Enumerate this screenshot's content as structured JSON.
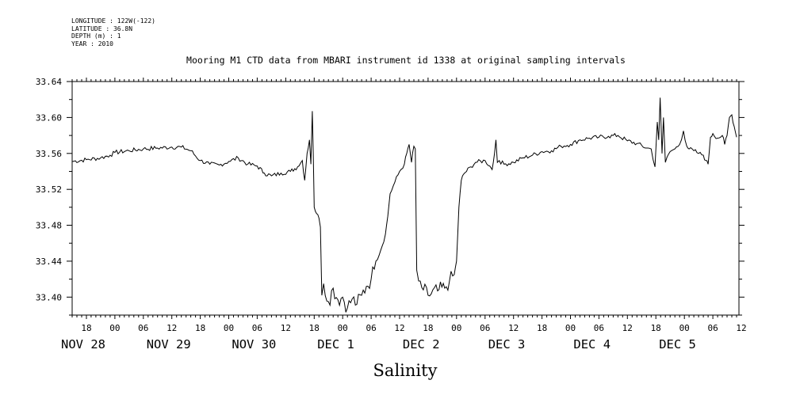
{
  "meta": {
    "longitude": "LONGITUDE : 122W(-122)",
    "latitude": "LATITUDE : 36.8N",
    "depth": "DEPTH (m) : 1",
    "year": "YEAR : 2010"
  },
  "chart_data": {
    "type": "line",
    "title": "Mooring M1 CTD data from MBARI instrument id 1338 at original sampling intervals",
    "xlabel": "Salinity",
    "ylabel": "",
    "xlim": [
      -9,
      131.5
    ],
    "ylim": [
      33.38,
      33.64
    ],
    "y_ticks": [
      "33.40",
      "33.44",
      "33.48",
      "33.52",
      "33.56",
      "33.60",
      "33.64"
    ],
    "x_tick_hours": [
      -6,
      0,
      6,
      12,
      18,
      24,
      30,
      36,
      42,
      48,
      54,
      60,
      66,
      72,
      78,
      84,
      90,
      96,
      102,
      108,
      114,
      120,
      126,
      132
    ],
    "x_tick_labels": [
      "18",
      "00",
      "06",
      "12",
      "18",
      "00",
      "06",
      "12",
      "18",
      "00",
      "06",
      "12",
      "18",
      "00",
      "06",
      "12",
      "18",
      "00",
      "06",
      "12",
      "18",
      "00",
      "06",
      "12"
    ],
    "x_day_labels": [
      {
        "label": "NOV 28",
        "at": -6
      },
      {
        "label": "NOV 29",
        "at": 12
      },
      {
        "label": "NOV 30",
        "at": 30
      },
      {
        "label": "DEC  1",
        "at": 48
      },
      {
        "label": "DEC  2",
        "at": 66
      },
      {
        "label": "DEC  3",
        "at": 84
      },
      {
        "label": "DEC  4",
        "at": 102
      },
      {
        "label": "DEC  5",
        "at": 120
      }
    ],
    "x_units": "hours from 00:00 NOV 29 2010",
    "grid": false,
    "series": [
      {
        "values": [
          [
            -9,
            33.551
          ],
          [
            -6,
            33.553
          ],
          [
            -3,
            33.555
          ],
          [
            -1,
            33.558
          ],
          [
            0,
            33.561
          ],
          [
            3,
            33.563
          ],
          [
            6,
            33.565
          ],
          [
            9,
            33.566
          ],
          [
            12,
            33.567
          ],
          [
            14,
            33.567
          ],
          [
            16,
            33.563
          ],
          [
            18,
            33.552
          ],
          [
            20,
            33.548
          ],
          [
            22,
            33.547
          ],
          [
            24,
            33.551
          ],
          [
            26,
            33.555
          ],
          [
            28,
            33.548
          ],
          [
            30,
            33.546
          ],
          [
            31.5,
            33.538
          ],
          [
            33,
            33.535
          ],
          [
            35,
            33.538
          ],
          [
            37,
            33.54
          ],
          [
            38.5,
            33.545
          ],
          [
            39.5,
            33.552
          ],
          [
            40,
            33.53
          ],
          [
            40.5,
            33.56
          ],
          [
            41,
            33.575
          ],
          [
            41.3,
            33.548
          ],
          [
            41.6,
            33.607
          ],
          [
            41.8,
            33.56
          ],
          [
            42,
            33.5
          ],
          [
            42.5,
            33.493
          ],
          [
            43,
            33.488
          ],
          [
            43.3,
            33.478
          ],
          [
            43.6,
            33.402
          ],
          [
            44,
            33.415
          ],
          [
            45,
            33.395
          ],
          [
            46,
            33.41
          ],
          [
            47,
            33.397
          ],
          [
            48,
            33.4
          ],
          [
            49,
            33.388
          ],
          [
            50,
            33.398
          ],
          [
            51,
            33.392
          ],
          [
            52,
            33.402
          ],
          [
            53,
            33.412
          ],
          [
            54,
            33.42
          ],
          [
            55,
            33.44
          ],
          [
            56,
            33.452
          ],
          [
            57,
            33.47
          ],
          [
            57.5,
            33.49
          ],
          [
            58,
            33.515
          ],
          [
            59,
            33.528
          ],
          [
            60,
            33.54
          ],
          [
            61,
            33.548
          ],
          [
            61.5,
            33.56
          ],
          [
            62,
            33.57
          ],
          [
            62.5,
            33.55
          ],
          [
            63,
            33.568
          ],
          [
            63.3,
            33.565
          ],
          [
            63.6,
            33.43
          ],
          [
            64,
            33.418
          ],
          [
            65,
            33.408
          ],
          [
            66,
            33.402
          ],
          [
            68,
            33.407
          ],
          [
            69.5,
            33.41
          ],
          [
            70.5,
            33.418
          ],
          [
            71.5,
            33.425
          ],
          [
            72,
            33.44
          ],
          [
            72.5,
            33.5
          ],
          [
            73,
            33.53
          ],
          [
            73.5,
            33.537
          ],
          [
            75,
            33.545
          ],
          [
            76,
            33.55
          ],
          [
            78,
            33.552
          ],
          [
            79,
            33.546
          ],
          [
            79.5,
            33.542
          ],
          [
            80,
            33.56
          ],
          [
            80.3,
            33.575
          ],
          [
            80.6,
            33.55
          ],
          [
            81,
            33.552
          ],
          [
            82,
            33.548
          ],
          [
            84,
            33.55
          ],
          [
            86,
            33.555
          ],
          [
            88,
            33.558
          ],
          [
            90,
            33.562
          ],
          [
            92,
            33.563
          ],
          [
            94,
            33.568
          ],
          [
            96,
            33.57
          ],
          [
            98,
            33.575
          ],
          [
            100,
            33.577
          ],
          [
            102,
            33.578
          ],
          [
            104,
            33.579
          ],
          [
            106,
            33.58
          ],
          [
            108,
            33.574
          ],
          [
            110,
            33.571
          ],
          [
            112,
            33.566
          ],
          [
            113,
            33.565
          ],
          [
            113.8,
            33.545
          ],
          [
            114.3,
            33.595
          ],
          [
            114.6,
            33.575
          ],
          [
            114.9,
            33.622
          ],
          [
            115.3,
            33.56
          ],
          [
            115.6,
            33.6
          ],
          [
            116,
            33.55
          ],
          [
            117,
            33.562
          ],
          [
            118,
            33.565
          ],
          [
            119,
            33.57
          ],
          [
            119.8,
            33.585
          ],
          [
            120.5,
            33.568
          ],
          [
            121,
            33.565
          ],
          [
            122,
            33.563
          ],
          [
            123,
            33.56
          ],
          [
            124,
            33.558
          ],
          [
            124.5,
            33.552
          ],
          [
            125,
            33.548
          ],
          [
            125.5,
            33.578
          ],
          [
            126,
            33.582
          ],
          [
            127,
            33.577
          ],
          [
            128,
            33.58
          ],
          [
            128.5,
            33.57
          ],
          [
            129,
            33.58
          ],
          [
            129.5,
            33.6
          ],
          [
            130,
            33.603
          ],
          [
            130.5,
            33.59
          ],
          [
            131,
            33.578
          ]
        ]
      }
    ]
  }
}
